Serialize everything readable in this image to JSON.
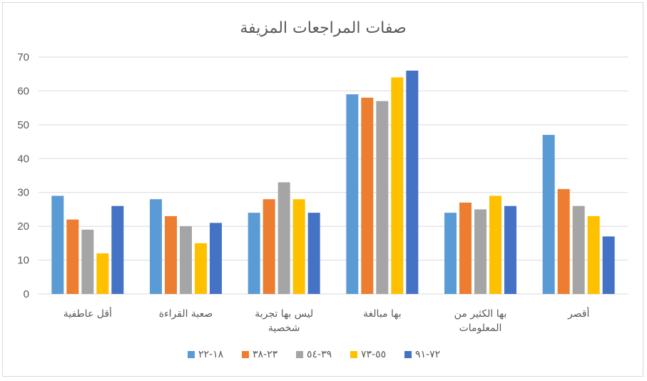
{
  "colors": {
    "series": [
      "#5b9bd5",
      "#ed7d31",
      "#a5a5a5",
      "#ffc000",
      "#4472c4"
    ],
    "gridline": "#d9d9d9",
    "text": "#595959"
  },
  "chart_data": {
    "type": "bar",
    "title": "صفات المراجعات المزيفة",
    "xlabel": "",
    "ylabel": "",
    "ylim": [
      0,
      70
    ],
    "yticks": [
      0,
      10,
      20,
      30,
      40,
      50,
      60,
      70
    ],
    "grid": true,
    "legend_position": "bottom",
    "categories": [
      [
        "أقل عاطفية"
      ],
      [
        "صعبة القراءة"
      ],
      [
        "ليس بها تجربة",
        "شخصية"
      ],
      [
        "بها مبالغة"
      ],
      [
        "بها الكثير من",
        "المعلومات"
      ],
      [
        "أقصر"
      ]
    ],
    "series": [
      {
        "name": "١٨-٢٢",
        "values": [
          29,
          28,
          24,
          59,
          24,
          47
        ]
      },
      {
        "name": "٢٣-٣٨",
        "values": [
          22,
          23,
          28,
          58,
          27,
          31
        ]
      },
      {
        "name": "٣٩-٥٤",
        "values": [
          19,
          20,
          33,
          57,
          25,
          26
        ]
      },
      {
        "name": "٥٥-٧٣",
        "values": [
          12,
          15,
          28,
          64,
          29,
          23
        ]
      },
      {
        "name": "٧٢-٩١",
        "values": [
          26,
          21,
          24,
          66,
          26,
          17
        ]
      }
    ]
  }
}
